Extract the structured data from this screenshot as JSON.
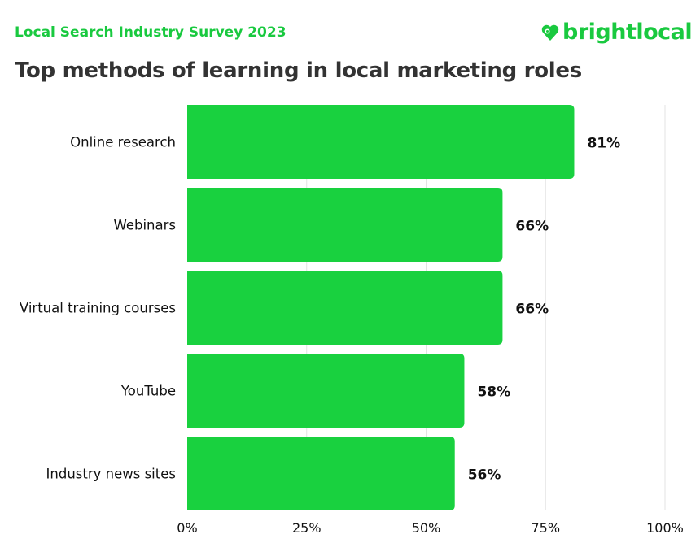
{
  "header": {
    "subtitle": "Local Search Industry Survey 2023",
    "brand": "brightlocal",
    "brand_icon": "heart-location-pin-icon"
  },
  "chart_data": {
    "type": "bar",
    "orientation": "horizontal",
    "title": "Top methods of learning in local marketing roles",
    "categories": [
      "Online research",
      "Webinars",
      "Virtual training courses",
      "YouTube",
      "Industry news sites"
    ],
    "values": [
      81,
      66,
      66,
      58,
      56
    ],
    "value_labels": [
      "81%",
      "66%",
      "66%",
      "58%",
      "56%"
    ],
    "xlim": [
      0,
      100
    ],
    "xticks": [
      0,
      25,
      50,
      75,
      100
    ],
    "xtick_labels": [
      "0%",
      "25%",
      "50%",
      "75%",
      "100%"
    ],
    "grid": true,
    "legend": "none",
    "colors": {
      "bar": "#19d13f",
      "accent": "#19c93f",
      "text": "#111111",
      "grid": "#e3e3e3"
    }
  }
}
